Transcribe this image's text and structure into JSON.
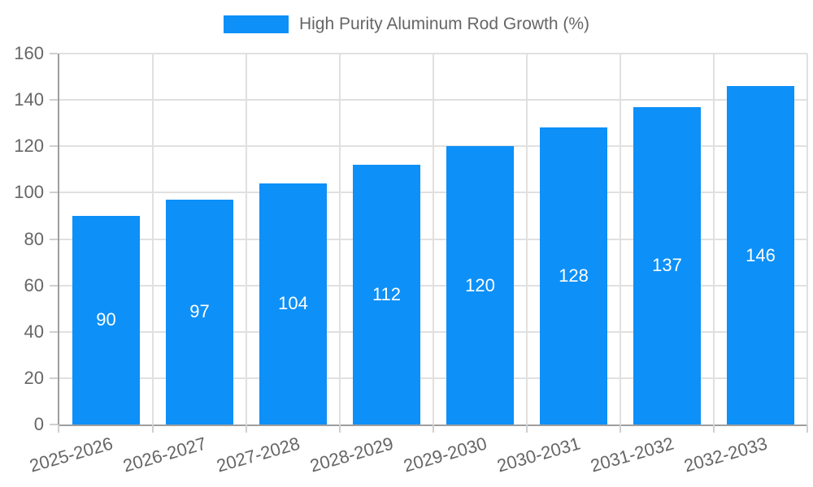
{
  "legend": {
    "label": "High Purity Aluminum Rod Growth (%)"
  },
  "colors": {
    "bar": "#0D90F8",
    "bar_label": "#ffffff",
    "text": "#666666",
    "grid": "#e0e0e0",
    "axis": "#9e9e9e",
    "tick": "#cfcfcf",
    "background": "#ffffff"
  },
  "chart_data": {
    "type": "bar",
    "title": "High Purity Aluminum Rod Growth (%)",
    "categories": [
      "2025-2026",
      "2026-2027",
      "2027-2028",
      "2028-2029",
      "2029-2030",
      "2030-2031",
      "2031-2032",
      "2032-2033"
    ],
    "values": [
      90,
      97,
      104,
      112,
      120,
      128,
      137,
      146
    ],
    "series": [
      {
        "name": "High Purity Aluminum Rod Growth (%)",
        "values": [
          90,
          97,
          104,
          112,
          120,
          128,
          137,
          146
        ]
      }
    ],
    "xlabel": "",
    "ylabel": "",
    "ylim": [
      0,
      160
    ],
    "yticks": [
      0,
      20,
      40,
      60,
      80,
      100,
      120,
      140,
      160
    ],
    "grid": true,
    "legend_position": "top-center",
    "value_labels_position": "inside-center",
    "x_tick_rotation_deg": -16
  }
}
